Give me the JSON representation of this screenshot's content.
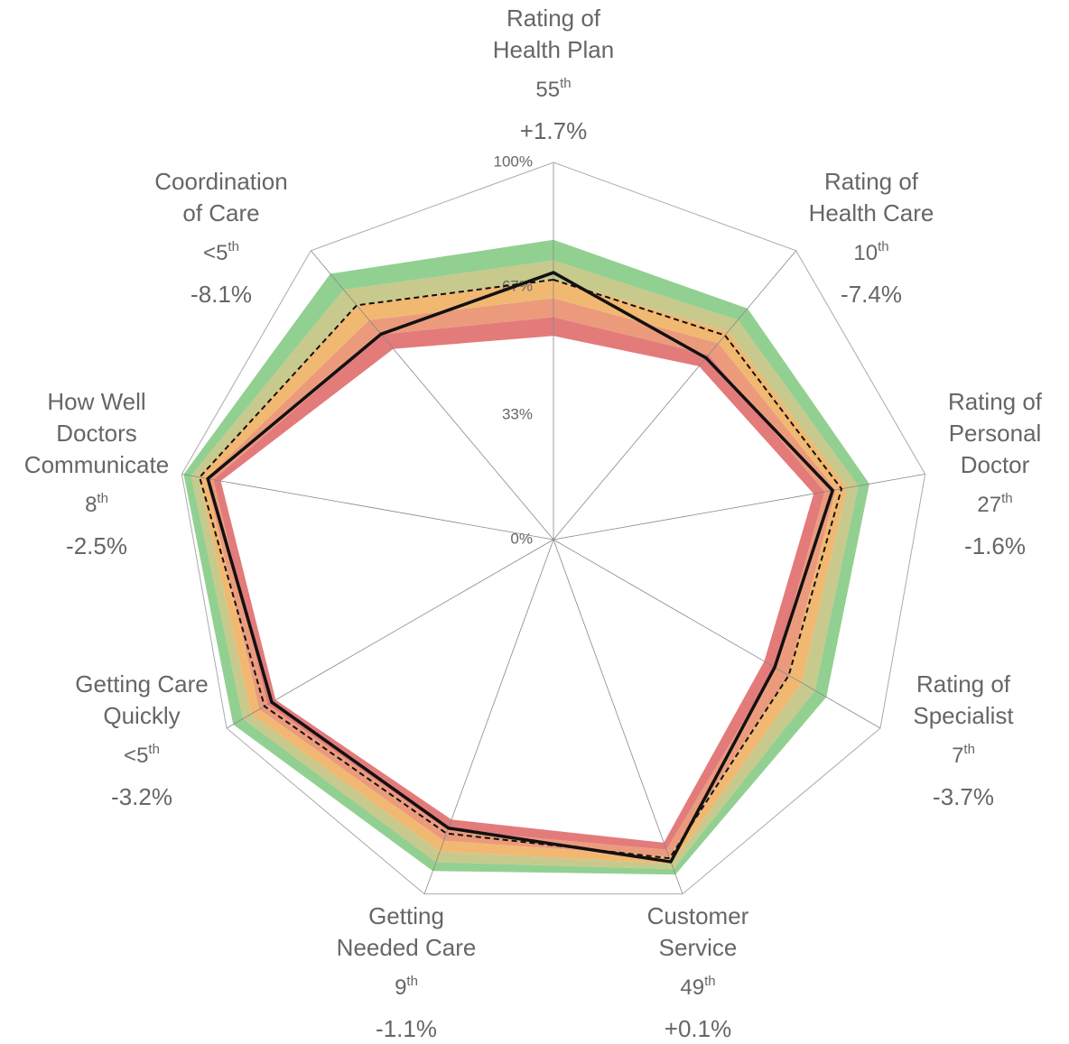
{
  "chart_data": {
    "type": "radar",
    "categories": [
      [
        "Rating of",
        "Health Plan"
      ],
      [
        "Rating of",
        "Health Care"
      ],
      [
        "Rating of",
        "Personal",
        "Doctor"
      ],
      [
        "Rating of",
        "Specialist"
      ],
      [
        "Customer",
        "Service"
      ],
      [
        "Getting",
        "Needed Care"
      ],
      [
        "Getting Care",
        "Quickly"
      ],
      [
        "How Well",
        "Doctors",
        "Communicate"
      ],
      [
        "Coordination",
        "of Care"
      ]
    ],
    "ranks": [
      "55",
      "10",
      "27",
      "7",
      "49",
      "9",
      "<5",
      "8",
      "<5"
    ],
    "rank_suffix": "th",
    "changes": [
      1.7,
      -7.4,
      -1.6,
      -3.7,
      0.1,
      -1.1,
      -3.2,
      -2.5,
      -8.1
    ],
    "change_labels": [
      "+1.7%",
      "-7.4%",
      "-1.6%",
      "-3.7%",
      "+0.1%",
      "-1.1%",
      "-3.2%",
      "-2.5%",
      "-8.1%"
    ],
    "positive_color": "#9bbb59",
    "negative_color": "#c00000",
    "rlim": [
      0,
      100
    ],
    "rticks": [
      {
        "value": 0,
        "label": "0%"
      },
      {
        "value": 33,
        "label": "33%"
      },
      {
        "value": 67,
        "label": "67%"
      },
      {
        "value": 100,
        "label": "100%"
      }
    ],
    "bands": {
      "colors": [
        "#e37b7b",
        "#eb9b7c",
        "#f1b872",
        "#c8c98c",
        "#92d091"
      ],
      "edges": [
        [
          54,
          60,
          70,
          64.5,
          85.5,
          79,
          85,
          89.5,
          66
        ],
        [
          59,
          64,
          73,
          68,
          87.5,
          82,
          87.5,
          91.5,
          71
        ],
        [
          64,
          68,
          76,
          72,
          89.5,
          85,
          90,
          93.5,
          76
        ],
        [
          69,
          72,
          79,
          76,
          91.5,
          88,
          92.5,
          95.5,
          81
        ],
        [
          74,
          76,
          82,
          80,
          93,
          91,
          95,
          97.5,
          86.5
        ],
        [
          79.5,
          80,
          85,
          83.5,
          94.5,
          93.5,
          98,
          99.5,
          92
        ]
      ]
    },
    "series": [
      {
        "color": "#111111",
        "style": "dashed",
        "values": [
          68.9,
          70.7,
          77.5,
          72,
          89.9,
          82.9,
          88.4,
          95.2,
          81.1
        ]
      },
      {
        "color": "#111111",
        "style": "solid",
        "values": [
          70.8,
          62.9,
          75.1,
          67.7,
          90.9,
          81.4,
          86.2,
          93,
          71.1
        ]
      }
    ]
  }
}
